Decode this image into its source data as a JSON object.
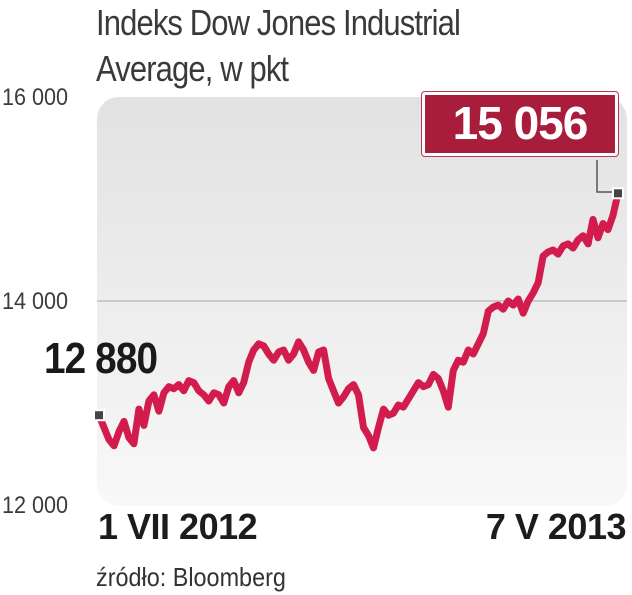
{
  "title": [
    "Indeks Dow Jones Industrial",
    "Average, w pkt"
  ],
  "source": "źródło: Bloomberg",
  "colors": {
    "line": "#d31c4e",
    "end_box": "#a81d3c",
    "plot_bg_top": "#e2e2e2",
    "plot_bg_bottom": "#f8f8f8",
    "grid": "#bdbdbd",
    "marker": "#444444"
  },
  "chart_data": {
    "type": "line",
    "title": "Indeks Dow Jones Industrial Average, w pkt",
    "source": "źródło: Bloomberg",
    "ylim": [
      12000,
      16000
    ],
    "yticks": [
      {
        "value": 12000,
        "label": "12 000"
      },
      {
        "value": 14000,
        "label": "14 000"
      },
      {
        "value": 16000,
        "label": "16 000"
      }
    ],
    "grid": "horizontal at 14 000",
    "x_labels": {
      "start": "1 VII 2012",
      "end": "7 V 2013"
    },
    "start_value_label": "12 880",
    "end_value_label": "15 056",
    "series": [
      {
        "values": [
          12880,
          12760,
          12640,
          12580,
          12720,
          12820,
          12660,
          12600,
          12940,
          12780,
          13020,
          13080,
          12920,
          13100,
          13160,
          13140,
          13180,
          13120,
          13220,
          13200,
          13120,
          13080,
          13020,
          13100,
          13080,
          13000,
          13160,
          13220,
          13100,
          13200,
          13400,
          13520,
          13580,
          13560,
          13480,
          13420,
          13500,
          13520,
          13420,
          13480,
          13600,
          13520,
          13400,
          13320,
          13500,
          13520,
          13240,
          13120,
          13000,
          13060,
          13140,
          13180,
          13080,
          12760,
          12680,
          12560,
          12760,
          12940,
          12880,
          12900,
          12980,
          12960,
          13040,
          13120,
          13200,
          13160,
          13180,
          13280,
          13240,
          13120,
          12960,
          13320,
          13420,
          13400,
          13520,
          13480,
          13580,
          13680,
          13900,
          13940,
          13960,
          13920,
          14000,
          13960,
          14020,
          13880,
          14000,
          14080,
          14180,
          14440,
          14480,
          14500,
          14460,
          14540,
          14560,
          14520,
          14600,
          14640,
          14560,
          14800,
          14620,
          14760,
          14700,
          14840,
          15056
        ]
      }
    ]
  }
}
